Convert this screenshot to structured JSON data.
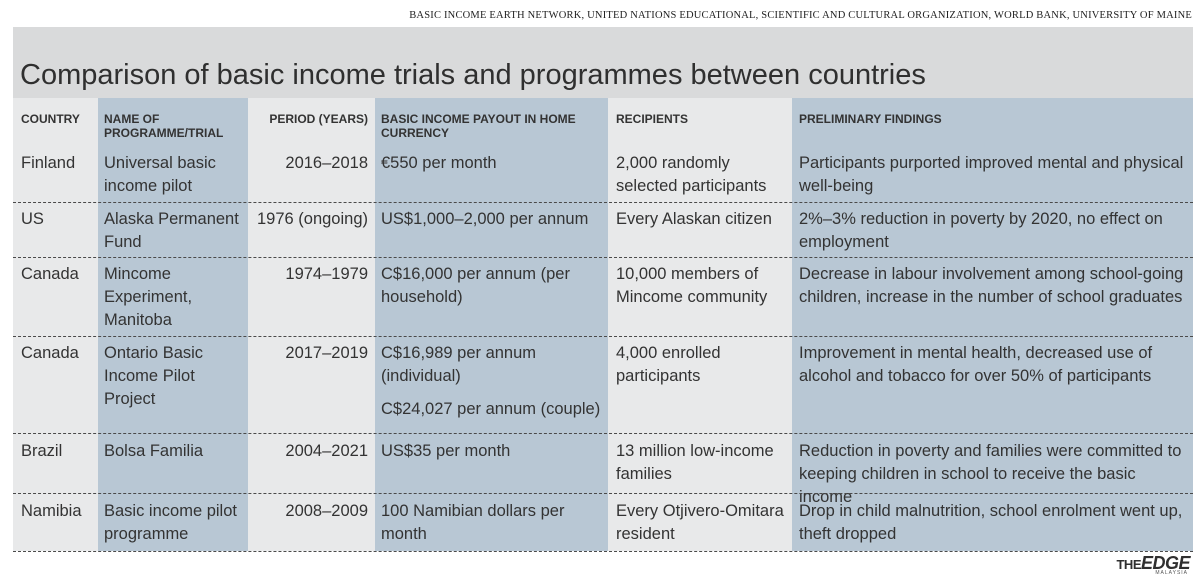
{
  "source": "BASIC INCOME EARTH NETWORK, UNITED NATIONS EDUCATIONAL, SCIENTIFIC AND CULTURAL ORGANIZATION, WORLD BANK, UNIVERSITY OF MAINE",
  "title": "Comparison of basic income trials and programmes between countries",
  "headers": {
    "country": "COUNTRY",
    "programme": "NAME OF PROGRAMME/TRIAL",
    "period": "PERIOD (YEARS)",
    "payout": "BASIC INCOME PAYOUT IN HOME CURRENCY",
    "recipients": "RECIPIENTS",
    "findings": "PRELIMINARY FINDINGS"
  },
  "rows": [
    {
      "country": "Finland",
      "programme": "Universal basic income pilot",
      "period": "2016–2018",
      "payout": "€550 per month",
      "payout2": "",
      "recipients": "2,000 randomly selected participants",
      "findings": "Participants purported improved mental and physical well-being"
    },
    {
      "country": "US",
      "programme": "Alaska Permanent Fund",
      "period": "1976 (ongoing)",
      "payout": "US$1,000–2,000 per annum",
      "payout2": "",
      "recipients": "Every Alaskan citizen",
      "findings": "2%–3% reduction in poverty by 2020, no effect on employment"
    },
    {
      "country": "Canada",
      "programme": "Mincome Experiment, Manitoba",
      "period": "1974–1979",
      "payout": "C$16,000 per annum (per household)",
      "payout2": "",
      "recipients": "10,000 members of Mincome community",
      "findings": "Decrease in labour involvement among school-going children, increase in the number of school graduates"
    },
    {
      "country": "Canada",
      "programme": "Ontario Basic Income Pilot Project",
      "period": "2017–2019",
      "payout": "C$16,989 per annum (individual)",
      "payout2": "C$24,027 per annum (couple)",
      "recipients": "4,000 enrolled participants",
      "findings": "Improvement in mental health, decreased use of alcohol and tobacco for over 50% of participants"
    },
    {
      "country": "Brazil",
      "programme": "Bolsa Familia",
      "period": "2004–2021",
      "payout": "US$35 per month",
      "payout2": "",
      "recipients": "13 million low-income families",
      "findings": "Reduction in poverty and families were committed to keeping children in school to receive the basic income"
    },
    {
      "country": "Namibia",
      "programme": "Basic income pilot programme",
      "period": "2008–2009",
      "payout": "100 Namibian dollars per month",
      "payout2": "",
      "recipients": "Every Otjivero-Omitara resident",
      "findings": "Drop in child malnutrition, school enrolment went up, theft dropped"
    }
  ],
  "logo": {
    "the": "THE",
    "edge": "EDGE",
    "sub": "MALAYSIA"
  }
}
